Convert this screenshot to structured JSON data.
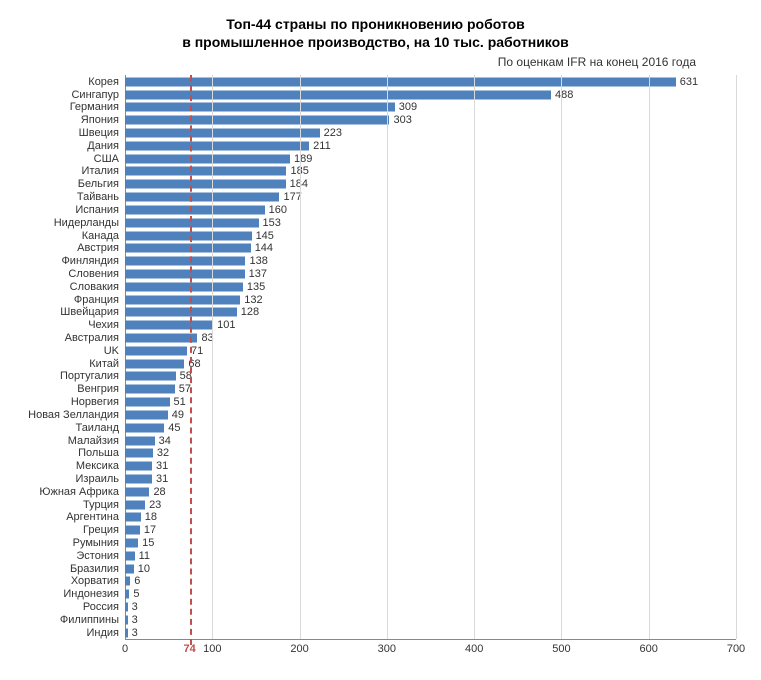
{
  "title_line1": "Топ-44 страны по проникновению роботов",
  "title_line2": "в промышленное производство, на 10 тыс. работников",
  "subtitle": "По оценкам IFR на конец 2016 года",
  "chart": {
    "type": "bar-horizontal",
    "xlim": [
      0,
      700
    ],
    "xtick_step": 100,
    "xticks": [
      0,
      100,
      200,
      300,
      400,
      500,
      600,
      700
    ],
    "reference_value": 74,
    "reference_color": "#c0504d",
    "bar_color": "#4f81bd",
    "background_color": "#ffffff",
    "grid_color": "#d9d9d9",
    "axis_color": "#888888",
    "label_fontsize": 11,
    "title_fontsize": 14,
    "data": [
      {
        "label": "Корея",
        "value": 631
      },
      {
        "label": "Сингапур",
        "value": 488
      },
      {
        "label": "Германия",
        "value": 309
      },
      {
        "label": "Япония",
        "value": 303
      },
      {
        "label": "Швеция",
        "value": 223
      },
      {
        "label": "Дания",
        "value": 211
      },
      {
        "label": "США",
        "value": 189
      },
      {
        "label": "Италия",
        "value": 185
      },
      {
        "label": "Бельгия",
        "value": 184
      },
      {
        "label": "Тайвань",
        "value": 177
      },
      {
        "label": "Испания",
        "value": 160
      },
      {
        "label": "Нидерланды",
        "value": 153
      },
      {
        "label": "Канада",
        "value": 145
      },
      {
        "label": "Австрия",
        "value": 144
      },
      {
        "label": "Финляндия",
        "value": 138
      },
      {
        "label": "Словения",
        "value": 137
      },
      {
        "label": "Словакия",
        "value": 135
      },
      {
        "label": "Франция",
        "value": 132
      },
      {
        "label": "Швейцария",
        "value": 128
      },
      {
        "label": "Чехия",
        "value": 101
      },
      {
        "label": "Австралия",
        "value": 83
      },
      {
        "label": "UK",
        "value": 71
      },
      {
        "label": "Китай",
        "value": 68
      },
      {
        "label": "Португалия",
        "value": 58
      },
      {
        "label": "Венгрия",
        "value": 57
      },
      {
        "label": "Норвегия",
        "value": 51
      },
      {
        "label": "Новая Зелландия",
        "value": 49
      },
      {
        "label": "Таиланд",
        "value": 45
      },
      {
        "label": "Малайзия",
        "value": 34
      },
      {
        "label": "Польша",
        "value": 32
      },
      {
        "label": "Мексика",
        "value": 31
      },
      {
        "label": "Израиль",
        "value": 31
      },
      {
        "label": "Южная Африка",
        "value": 28
      },
      {
        "label": "Турция",
        "value": 23
      },
      {
        "label": "Аргентина",
        "value": 18
      },
      {
        "label": "Греция",
        "value": 17
      },
      {
        "label": "Румыния",
        "value": 15
      },
      {
        "label": "Эстония",
        "value": 11
      },
      {
        "label": "Бразилия",
        "value": 10
      },
      {
        "label": "Хорватия",
        "value": 6
      },
      {
        "label": "Индонезия",
        "value": 5
      },
      {
        "label": "Россия",
        "value": 3
      },
      {
        "label": "Филиппины",
        "value": 3
      },
      {
        "label": "Индия",
        "value": 3
      }
    ]
  }
}
